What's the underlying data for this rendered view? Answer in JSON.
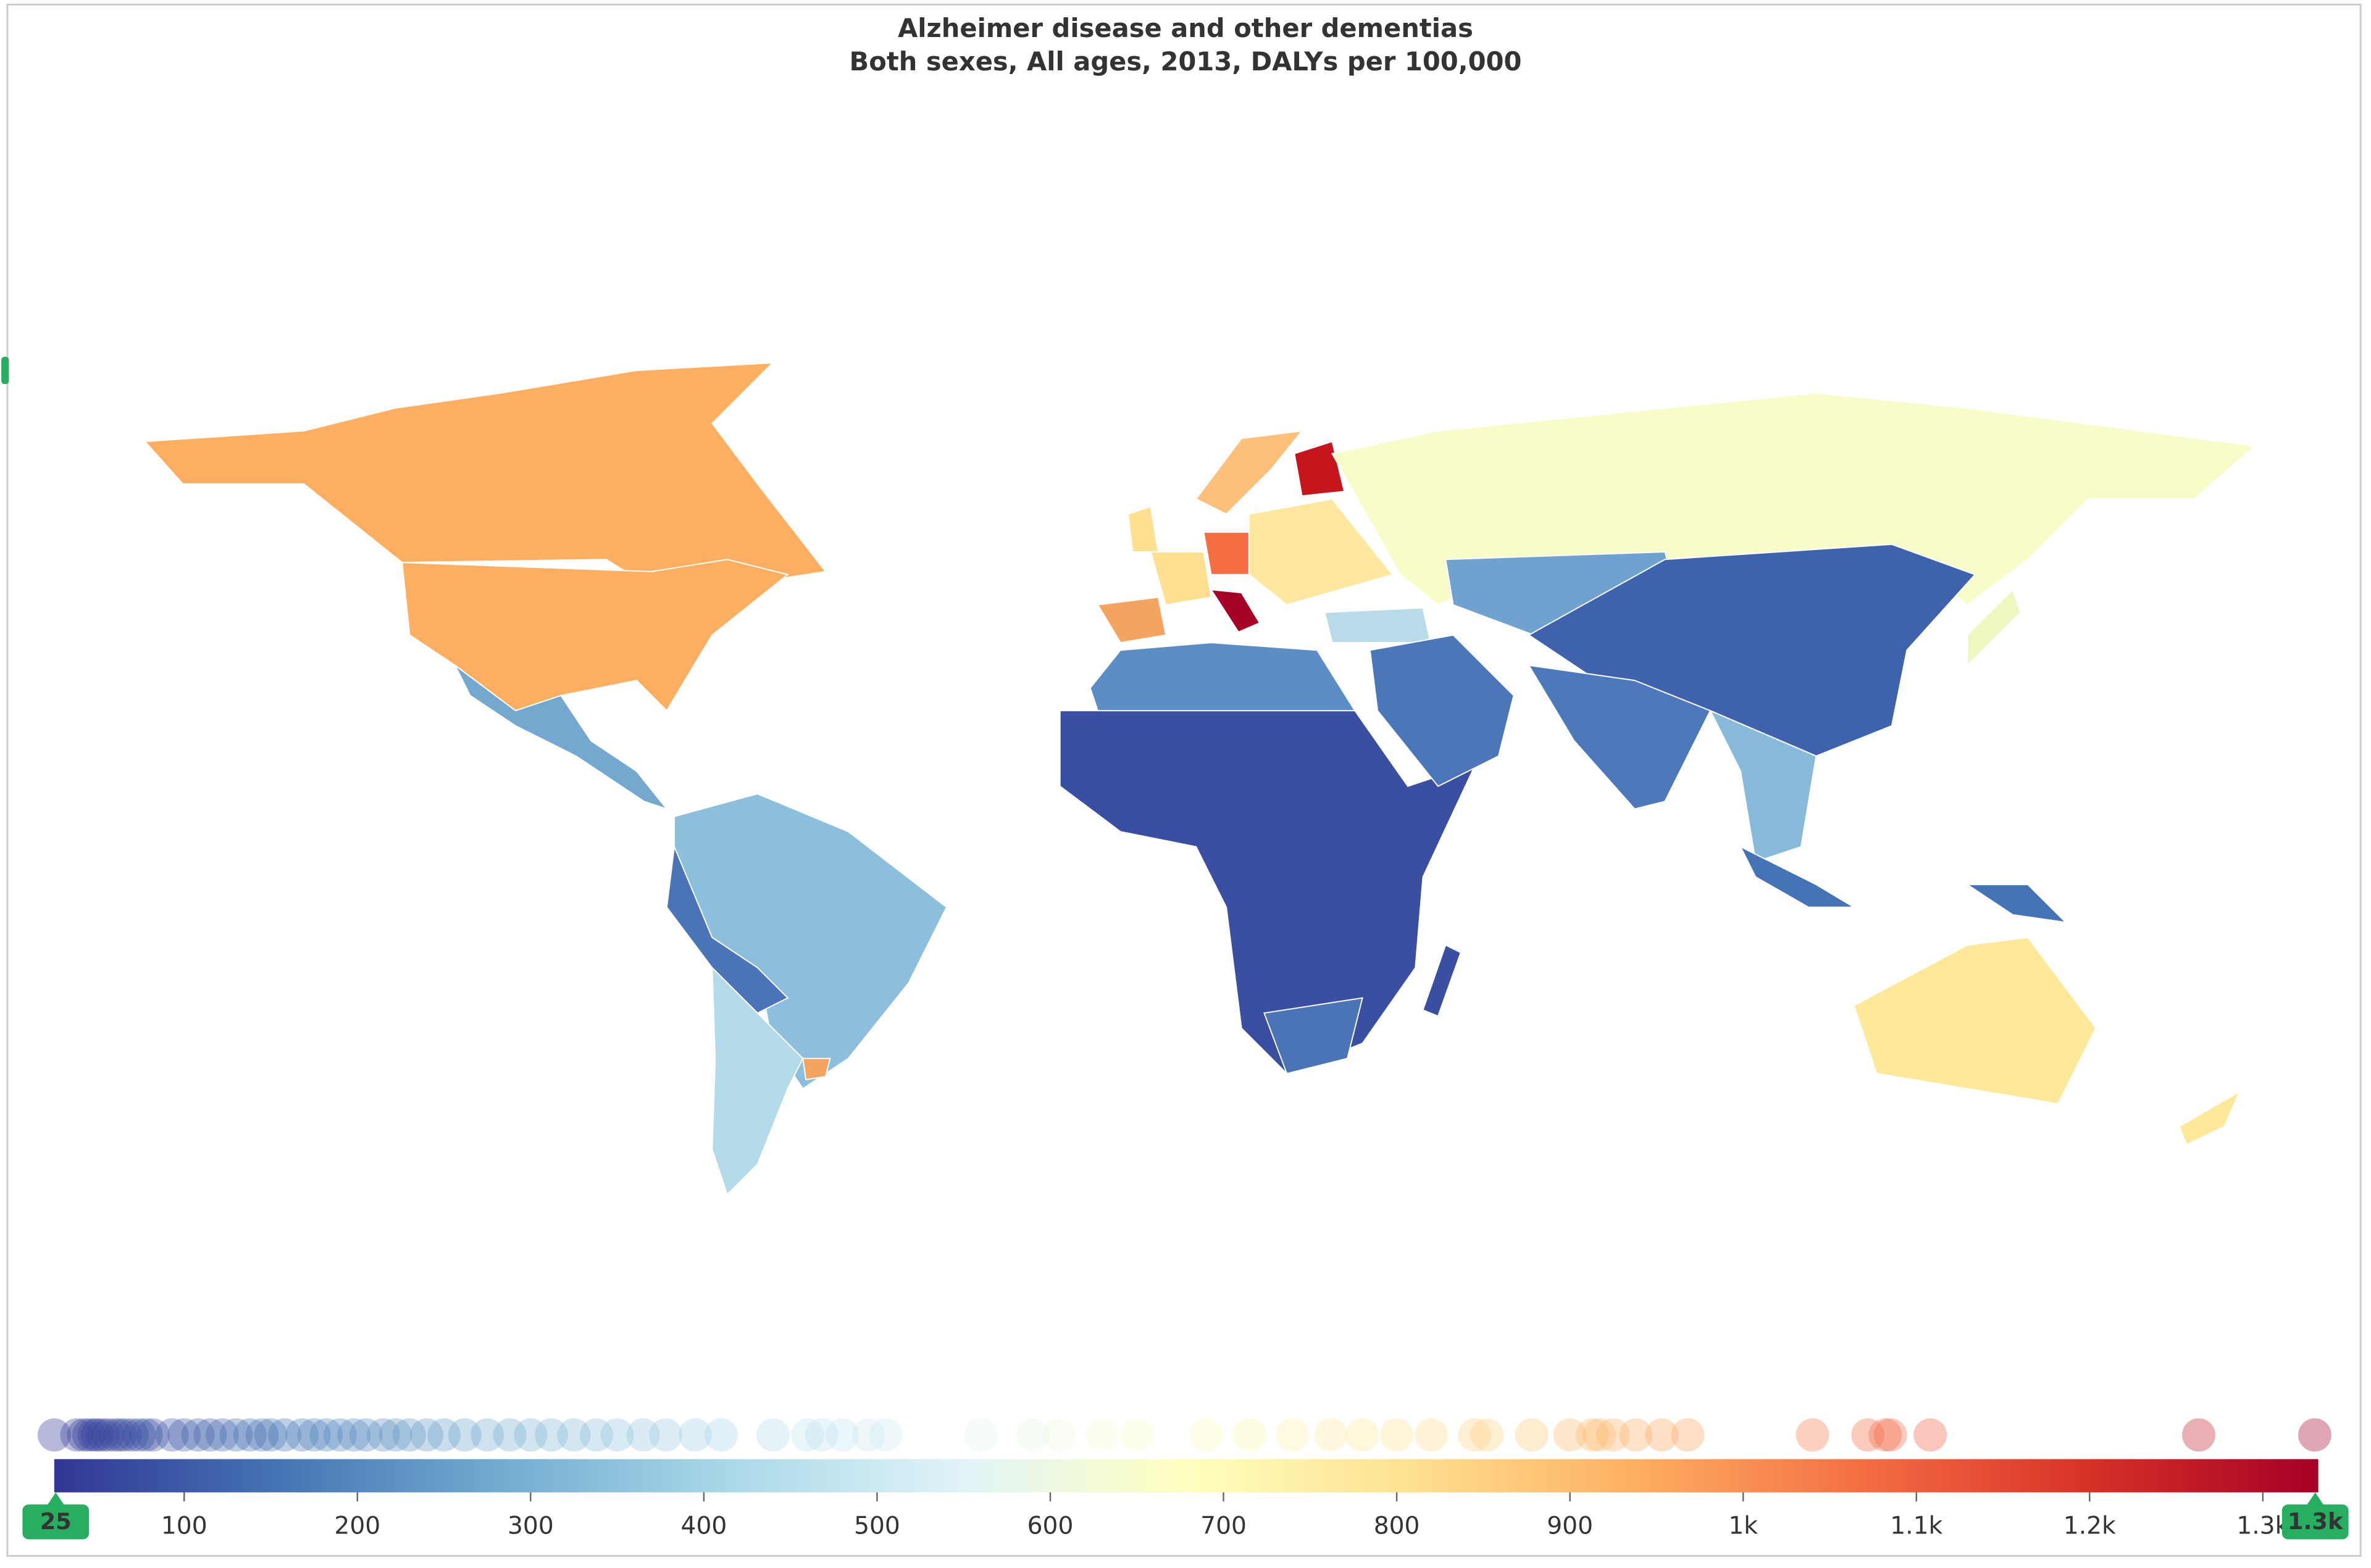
{
  "chart_data": {
    "type": "choropleth",
    "title": "Alzheimer disease and other dementias",
    "subtitle": "Both sexes, All ages, 2013, DALYs per 100,000",
    "xlim": [
      25,
      1332
    ],
    "xticks": [
      100,
      200,
      300,
      400,
      500,
      600,
      700,
      800,
      900,
      {
        "value": 1000,
        "label": "1k"
      },
      {
        "value": 1100,
        "label": "1.1k"
      },
      {
        "value": 1200,
        "label": "1.2k"
      },
      {
        "value": 1300,
        "label": "1.3k"
      }
    ],
    "handles": [
      {
        "value": 25,
        "label": "25"
      },
      {
        "value": 1332,
        "label": "1.3k"
      }
    ],
    "colors": [
      "#313695",
      "#4575b4",
      "#74add1",
      "#abd9e9",
      "#e0f3f8",
      "#ffffbf",
      "#fee090",
      "#fdae61",
      "#f46d43",
      "#d73027",
      "#a50026"
    ],
    "values": [
      25,
      38,
      42,
      45,
      48,
      50,
      53,
      56,
      60,
      63,
      66,
      70,
      74,
      78,
      82,
      93,
      100,
      108,
      115,
      122,
      130,
      138,
      145,
      150,
      158,
      168,
      175,
      182,
      190,
      198,
      205,
      215,
      222,
      230,
      240,
      250,
      262,
      275,
      288,
      300,
      312,
      325,
      338,
      350,
      365,
      378,
      395,
      410,
      440,
      460,
      468,
      480,
      495,
      505,
      560,
      590,
      605,
      630,
      650,
      690,
      715,
      740,
      762,
      780,
      800,
      820,
      845,
      852,
      878,
      900,
      913,
      917,
      925,
      938,
      953,
      968,
      1040,
      1072,
      1082,
      1085,
      1108,
      1263,
      1330
    ]
  }
}
